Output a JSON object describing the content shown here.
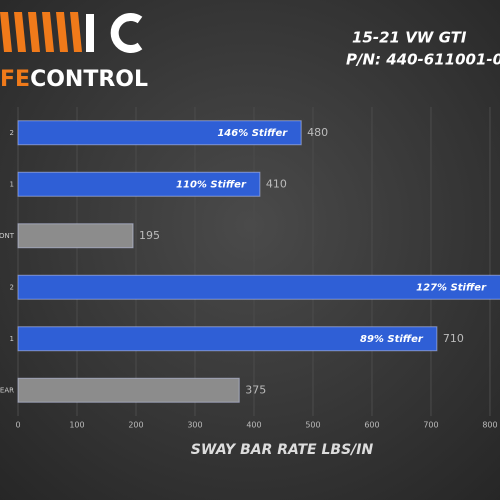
{
  "chart_data": {
    "type": "bar",
    "orientation": "horizontal",
    "title": "15-21 VW GTI",
    "subtitle": "P/N: 440-611001-0",
    "logo": {
      "accent": "FE",
      "text": "CONTROL"
    },
    "xlabel": "SWAY BAR RATE LBS/IN",
    "categories": [
      "2",
      "1",
      "ONT",
      "2",
      "1",
      "EAR"
    ],
    "values": [
      480,
      410,
      195,
      851,
      710,
      375
    ],
    "annotations": [
      "146% Stiffer",
      "110% Stiffer",
      null,
      "127% Stiffer",
      "89% Stiffer",
      null
    ],
    "colors": [
      "#2f5fd6",
      "#2f5fd6",
      "#8c8c8c",
      "#2f5fd6",
      "#2f5fd6",
      "#8c8c8c"
    ],
    "xlim": [
      0,
      817
    ],
    "xticks": [
      0,
      100,
      200,
      300,
      400,
      500,
      600,
      700,
      800
    ],
    "grid": true
  }
}
